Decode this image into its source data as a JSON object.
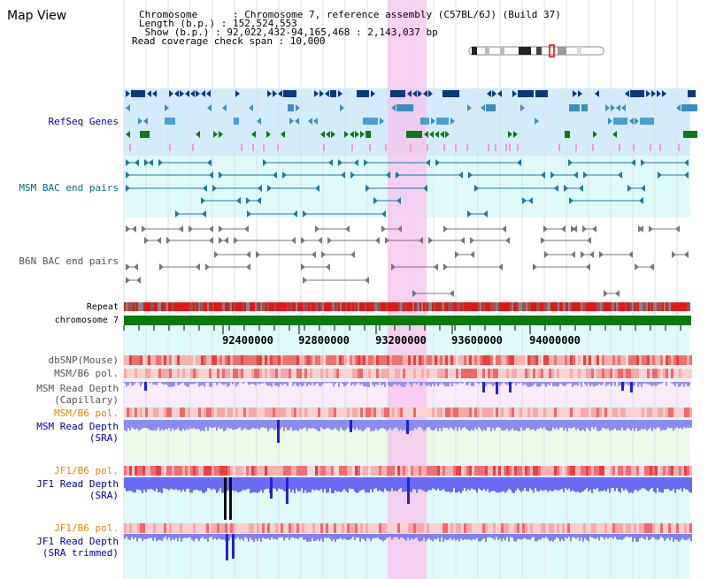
{
  "view_title": "Map View",
  "header": {
    "chromosome": "Chromosome      : Chromosome 7, reference assembly (C57BL/6J) (Build 37)",
    "length": "Length (b.p.) : 152,524,553",
    "show": " Show (b.p.) : 92,022,432-94,165,468 : 2,143,037 bp",
    "read_coverage": "Read coverage check span : 10,000"
  },
  "tracks": {
    "refseq_genes": "RefSeq Genes",
    "msm_bac": "MSM BAC end pairs",
    "b6n_bac": "B6N BAC end pairs",
    "repeat": "Repeat",
    "chromosome": "chromosome 7",
    "dbsnp": "dbSNP(Mouse)",
    "msm_b6_pol": "MSM/B6 pol.",
    "msm_read_depth_cap_1": "MSM Read Depth",
    "msm_read_depth_cap_2": "(Capillary)",
    "msm_b6_pol_sra": "MSM/B6 pol.",
    "msm_read_depth_sra_1": "MSM Read Depth",
    "msm_read_depth_sra_2": "(SRA)",
    "jf1_b6_pol": "JF1/B6 pol.",
    "jf1_read_depth_1": "JF1 Read Depth",
    "jf1_read_depth_2": "(SRA)",
    "jf1_b6_pol_trim": "JF1/B6 pol.",
    "jf1_read_depth_trim_1": "JF1 Read Depth",
    "jf1_read_depth_trim_2": "(SRA trimmed)"
  },
  "axis_ticks": [
    "92400000",
    "92800000",
    "93200000",
    "93600000",
    "94000000"
  ],
  "colors": {
    "highlight": "#f5c6ee",
    "refseq_bg": "#d4ecfa",
    "bac_bg": "#e0fafa",
    "gene_navy": "#0b3a78",
    "gene_blue": "#3a8fc0",
    "gene_green": "#0b7a1a",
    "chromosome_bar": "#0a7a0a",
    "depth_blue": "#5a5aee"
  }
}
